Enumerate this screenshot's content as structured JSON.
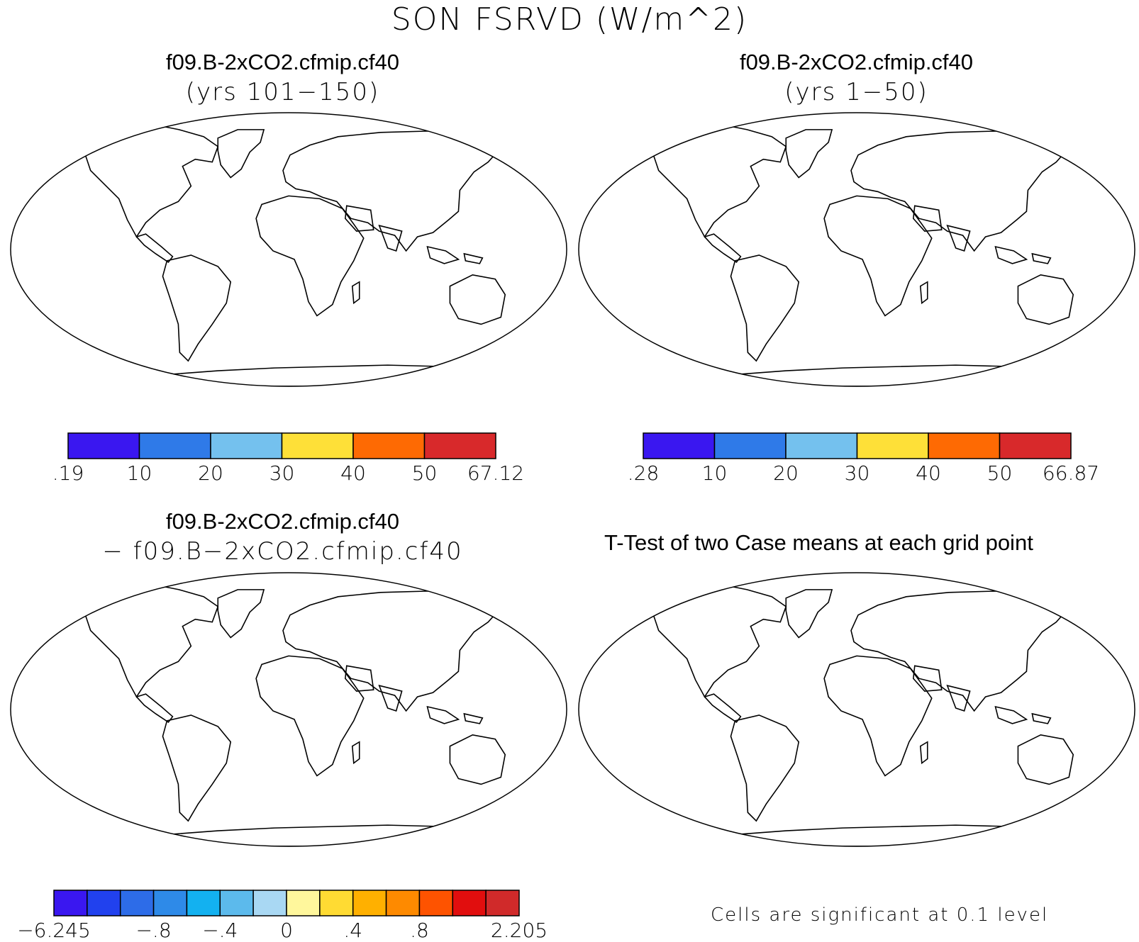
{
  "figure_title": "SON FSRVD (W/m^2)",
  "panels": [
    {
      "title": "f09.B-2xCO2.cfmip.cf40",
      "subtitle": "(yrs 101−150)",
      "colorbar": {
        "colors": [
          "#3a17f0",
          "#2f7ae8",
          "#74c1ee",
          "#fee038",
          "#fe6a03",
          "#d8292b"
        ],
        "labels": [
          ".19",
          "10",
          "20",
          "30",
          "40",
          "50",
          "67.12"
        ]
      }
    },
    {
      "title": "f09.B-2xCO2.cfmip.cf40",
      "subtitle": "(yrs 1−50)",
      "colorbar": {
        "colors": [
          "#3a17f0",
          "#2f7ae8",
          "#74c1ee",
          "#fee038",
          "#fe6a03",
          "#d8292b"
        ],
        "labels": [
          ".28",
          "10",
          "20",
          "30",
          "40",
          "50",
          "66.87"
        ]
      }
    },
    {
      "title": "f09.B-2xCO2.cfmip.cf40",
      "subtitle": "− f09.B−2xCO2.cfmip.cf40",
      "colorbar": {
        "colors": [
          "#3a17f0",
          "#2141ee",
          "#2d6ce8",
          "#2e8ae8",
          "#13b1f0",
          "#5cbaec",
          "#a9d8f3",
          "#fff79c",
          "#ffdb33",
          "#ffb000",
          "#fe8a00",
          "#fe5300",
          "#e10e0e",
          "#d02a2a"
        ],
        "labels": [
          "−6.245",
          "−.8",
          "−.4",
          "0",
          ".4",
          ".8",
          "2.205"
        ],
        "label_positions": [
          0,
          3,
          5,
          7,
          9,
          11,
          14
        ]
      }
    },
    {
      "title": "T-Test of two Case means at each grid point",
      "note": "Cells are significant at 0.1 level",
      "significant_color": "#ff0000"
    }
  ]
}
